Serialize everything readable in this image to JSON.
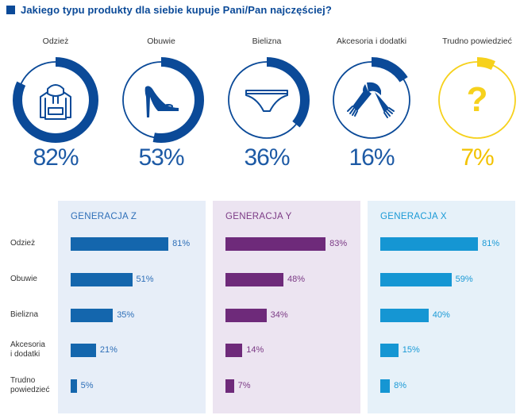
{
  "title": "Jakiego typu produkty dla siebie kupuje Pani/Pan najczęściej?",
  "colors": {
    "blue": "#0b4a98",
    "track": "#d9d9d9",
    "yellow": "#f6d11c",
    "panel_z": "#e7eef8",
    "panel_y": "#ece4f1",
    "panel_x": "#e6f1f9",
    "text_z": "#2e6fb8",
    "bar_z": "#1466ad",
    "text_y": "#7b3a85",
    "bar_y": "#6e2a7a",
    "text_x": "#1a9ad6",
    "bar_x": "#1596d3"
  },
  "chart_data": [
    {
      "type": "donut",
      "title": "Jakiego typu produkty dla siebie kupuje Pani/Pan najczęściej?",
      "items": [
        {
          "label": "Odzież",
          "value": 82,
          "display": "82%",
          "icon": "hoodie-icon"
        },
        {
          "label": "Obuwie",
          "value": 53,
          "display": "53%",
          "icon": "high-heel-icon"
        },
        {
          "label": "Bielizna",
          "value": 36,
          "display": "36%",
          "icon": "underwear-icon"
        },
        {
          "label": "Akcesoria i dodatki",
          "value": 16,
          "display": "16%",
          "icon": "scarf-icon"
        },
        {
          "label": "Trudno powiedzieć",
          "value": 7,
          "display": "7%",
          "icon": "question-mark-icon"
        }
      ]
    },
    {
      "type": "bar",
      "orientation": "horizontal",
      "categories": [
        "Odzież",
        "Obuwie",
        "Bielizna",
        "Akcesoria i dodatki",
        "Trudno powiedzieć"
      ],
      "category_lines": [
        [
          "Odzież"
        ],
        [
          "Obuwie"
        ],
        [
          "Bielizna"
        ],
        [
          "Akcesoria",
          "i dodatki"
        ],
        [
          "Trudno",
          "powiedzieć"
        ]
      ],
      "series": [
        {
          "name": "GENERACJA Z",
          "values": [
            81,
            51,
            35,
            21,
            5
          ],
          "labels": [
            "81%",
            "51%",
            "35%",
            "21%",
            "5%"
          ]
        },
        {
          "name": "GENERACJA Y",
          "values": [
            83,
            48,
            34,
            14,
            7
          ],
          "labels": [
            "83%",
            "48%",
            "34%",
            "14%",
            "7%"
          ]
        },
        {
          "name": "GENERACJA X",
          "values": [
            81,
            59,
            40,
            15,
            8
          ],
          "labels": [
            "81%",
            "59%",
            "40%",
            "15%",
            "8%"
          ]
        }
      ],
      "xlim": [
        0,
        100
      ]
    }
  ]
}
